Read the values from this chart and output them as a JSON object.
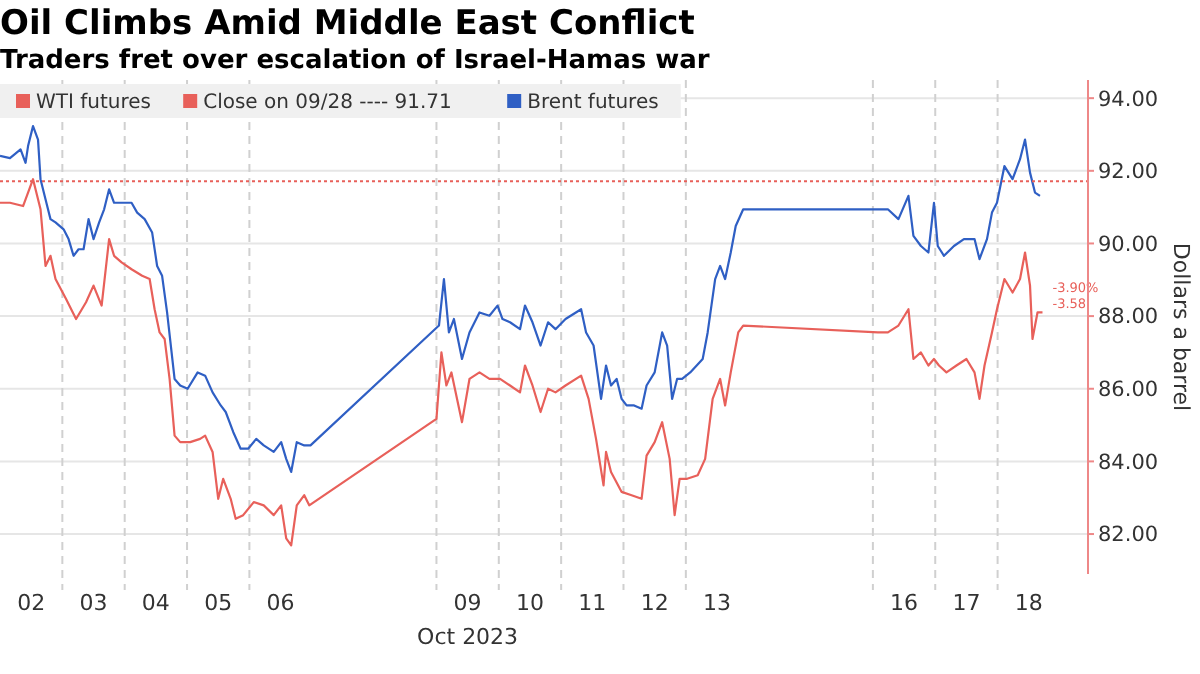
{
  "chart_data": {
    "type": "line",
    "title": "Oil Climbs Amid Middle East Conflict",
    "subtitle": "Traders fret over escalation of Israel-Hamas war",
    "xlabel": "Oct 2023",
    "ylabel": "Dollars a barrel",
    "xlim": [
      "2023-10-02T00:00",
      "2023-10-19T10:48"
    ],
    "xticks": [
      {
        "value": "2023-10-02T12:00",
        "label": "02"
      },
      {
        "value": "2023-10-03T12:00",
        "label": "03"
      },
      {
        "value": "2023-10-04T12:00",
        "label": "04"
      },
      {
        "value": "2023-10-05T12:00",
        "label": "05"
      },
      {
        "value": "2023-10-06T12:00",
        "label": "06"
      },
      {
        "value": "2023-10-09T12:00",
        "label": "09"
      },
      {
        "value": "2023-10-10T12:00",
        "label": "10"
      },
      {
        "value": "2023-10-11T12:00",
        "label": "11"
      },
      {
        "value": "2023-10-12T12:00",
        "label": "12"
      },
      {
        "value": "2023-10-13T12:00",
        "label": "13"
      },
      {
        "value": "2023-10-16T12:00",
        "label": "16"
      },
      {
        "value": "2023-10-17T12:00",
        "label": "17"
      },
      {
        "value": "2023-10-18T12:00",
        "label": "18"
      }
    ],
    "ylim": [
      80.9,
      94.5
    ],
    "yticks": [
      {
        "value": 82,
        "label": "82.00"
      },
      {
        "value": 84,
        "label": "84.00"
      },
      {
        "value": 86,
        "label": "86.00"
      },
      {
        "value": 88,
        "label": "88.00"
      },
      {
        "value": 90,
        "label": "90.00"
      },
      {
        "value": 92,
        "label": "92.00"
      },
      {
        "value": 94,
        "label": "94.00"
      }
    ],
    "grid": "y",
    "legend": "top left",
    "line_style": "solid",
    "marker": "none",
    "series": [
      {
        "name": "WTI futures",
        "color": "#e8605a",
        "x": [
          "2023-10-02T00:00",
          "2023-10-02T03:50",
          "2023-10-02T08:53",
          "2023-10-02T10:48",
          "2023-10-02T12:43",
          "2023-10-02T15:36",
          "2023-10-02T17:31",
          "2023-10-02T19:26",
          "2023-10-02T21:22",
          "2023-10-03T01:26",
          "2023-10-03T05:17",
          "2023-10-03T09:07",
          "2023-10-03T12:00",
          "2023-10-03T15:07",
          "2023-10-03T18:00",
          "2023-10-03T19:55",
          "2023-10-03T22:48",
          "2023-10-04T02:38",
          "2023-10-04T06:43",
          "2023-10-04T09:36",
          "2023-10-04T11:31",
          "2023-10-04T13:26",
          "2023-10-04T15:22",
          "2023-10-04T17:17",
          "2023-10-04T19:12",
          "2023-10-04T21:22",
          "2023-10-05T01:12",
          "2023-10-05T05:02",
          "2023-10-05T06:58",
          "2023-10-05T09:50",
          "2023-10-05T12:00",
          "2023-10-05T13:55",
          "2023-10-05T16:48",
          "2023-10-05T18:43",
          "2023-10-05T21:36",
          "2023-10-06T01:41",
          "2023-10-06T05:31",
          "2023-10-06T09:22",
          "2023-10-06T12:14",
          "2023-10-06T14:10",
          "2023-10-06T16:05",
          "2023-10-06T18:14",
          "2023-10-06T21:07",
          "2023-10-06T23:02",
          "2023-10-09T00:00",
          "2023-10-09T01:55",
          "2023-10-09T03:50",
          "2023-10-09T05:46",
          "2023-10-09T09:50",
          "2023-10-09T12:43",
          "2023-10-09T16:34",
          "2023-10-09T20:24",
          "2023-10-10T00:29",
          "2023-10-10T04:19",
          "2023-10-10T08:10",
          "2023-10-10T10:05",
          "2023-10-10T12:58",
          "2023-10-10T16:05",
          "2023-10-10T18:58",
          "2023-10-10T21:50",
          "2023-10-11T01:41",
          "2023-10-11T07:41",
          "2023-10-11T10:34",
          "2023-10-11T13:26",
          "2023-10-11T16:19",
          "2023-10-11T17:17",
          "2023-10-11T19:12",
          "2023-10-11T23:17",
          "2023-10-12T03:07",
          "2023-10-12T06:58",
          "2023-10-12T08:53",
          "2023-10-12T12:00",
          "2023-10-12T14:53",
          "2023-10-12T17:46",
          "2023-10-12T19:41",
          "2023-10-12T21:36",
          "2023-10-13T00:29",
          "2023-10-13T04:34",
          "2023-10-13T07:26",
          "2023-10-13T10:19",
          "2023-10-13T13:12",
          "2023-10-13T15:07",
          "2023-10-13T17:17",
          "2023-10-13T20:10",
          "2023-10-13T22:05",
          "2023-10-16T01:55",
          "2023-10-16T05:46",
          "2023-10-16T09:50",
          "2023-10-16T13:41",
          "2023-10-16T15:36",
          "2023-10-16T18:29",
          "2023-10-16T21:22",
          "2023-10-16T23:31",
          "2023-10-17T01:26",
          "2023-10-17T04:19",
          "2023-10-17T08:10",
          "2023-10-17T12:00",
          "2023-10-17T15:07",
          "2023-10-17T17:02",
          "2023-10-17T18:58",
          "2023-10-17T21:50",
          "2023-10-17T23:46",
          "2023-10-18T02:38",
          "2023-10-18T05:46",
          "2023-10-18T08:38",
          "2023-10-18T10:34",
          "2023-10-18T12:29",
          "2023-10-18T13:26",
          "2023-10-18T15:22",
          "2023-10-18T17:17"
        ],
        "values": [
          91.12,
          91.12,
          91.03,
          91.4,
          91.77,
          90.94,
          89.38,
          89.66,
          89.02,
          88.47,
          87.92,
          88.38,
          88.84,
          88.29,
          90.12,
          89.66,
          89.48,
          89.29,
          89.11,
          89.02,
          88.19,
          87.55,
          87.37,
          86.27,
          84.71,
          84.53,
          84.53,
          84.62,
          84.71,
          84.26,
          82.97,
          83.52,
          82.97,
          82.42,
          82.52,
          82.88,
          82.79,
          82.52,
          82.79,
          81.88,
          81.69,
          82.79,
          83.07,
          82.79,
          85.17,
          87,
          86.09,
          86.45,
          85.08,
          86.27,
          86.45,
          86.27,
          86.27,
          86.09,
          85.9,
          86.64,
          86.09,
          85.36,
          86,
          85.9,
          86.09,
          86.36,
          85.72,
          84.62,
          83.34,
          84.26,
          83.71,
          83.16,
          83.07,
          82.97,
          84.16,
          84.53,
          85.08,
          84.07,
          82.52,
          83.52,
          83.52,
          83.62,
          84.07,
          85.72,
          86.27,
          85.54,
          86.45,
          87.55,
          87.74,
          87.55,
          87.55,
          87.74,
          88.19,
          86.82,
          87,
          86.64,
          86.82,
          86.64,
          86.45,
          86.64,
          86.82,
          86.45,
          85.72,
          86.64,
          87.55,
          88.19,
          89.02,
          88.65,
          89.02,
          89.75,
          88.84,
          87.37,
          88.1,
          88.1
        ]
      },
      {
        "name": "Brent futures",
        "color": "#2f5fc4",
        "x": [
          "2023-10-02T00:00",
          "2023-10-02T03:50",
          "2023-10-02T07:55",
          "2023-10-02T09:50",
          "2023-10-02T10:48",
          "2023-10-02T12:43",
          "2023-10-02T14:38",
          "2023-10-02T15:36",
          "2023-10-02T17:31",
          "2023-10-02T19:26",
          "2023-10-02T21:22",
          "2023-10-03T00:29",
          "2023-10-03T02:24",
          "2023-10-03T04:19",
          "2023-10-03T06:14",
          "2023-10-03T08:10",
          "2023-10-03T10:05",
          "2023-10-03T12:00",
          "2023-10-03T14:10",
          "2023-10-03T16:05",
          "2023-10-03T18:00",
          "2023-10-03T19:55",
          "2023-10-03T22:48",
          "2023-10-04T02:38",
          "2023-10-04T04:48",
          "2023-10-04T07:41",
          "2023-10-04T10:34",
          "2023-10-04T12:29",
          "2023-10-04T14:24",
          "2023-10-04T16:19",
          "2023-10-04T19:12",
          "2023-10-04T21:22",
          "2023-10-05T00:14",
          "2023-10-05T04:05",
          "2023-10-05T06:58",
          "2023-10-05T09:50",
          "2023-10-05T12:58",
          "2023-10-05T14:53",
          "2023-10-05T17:46",
          "2023-10-05T20:38",
          "2023-10-05T23:31",
          "2023-10-06T02:38",
          "2023-10-06T05:31",
          "2023-10-06T09:22",
          "2023-10-06T12:14",
          "2023-10-06T14:10",
          "2023-10-06T16:05",
          "2023-10-06T18:14",
          "2023-10-06T21:07",
          "2023-10-06T23:31",
          "2023-10-09T00:58",
          "2023-10-09T02:53",
          "2023-10-09T04:48",
          "2023-10-09T06:43",
          "2023-10-09T09:50",
          "2023-10-09T12:43",
          "2023-10-09T16:34",
          "2023-10-09T20:24",
          "2023-10-09T23:31",
          "2023-10-10T01:26",
          "2023-10-10T04:19",
          "2023-10-10T08:10",
          "2023-10-10T10:05",
          "2023-10-10T12:58",
          "2023-10-10T16:05",
          "2023-10-10T18:58",
          "2023-10-10T21:50",
          "2023-10-11T01:41",
          "2023-10-11T07:41",
          "2023-10-11T09:36",
          "2023-10-11T12:29",
          "2023-10-11T15:22",
          "2023-10-11T17:17",
          "2023-10-11T19:12",
          "2023-10-11T21:22",
          "2023-10-11T23:17",
          "2023-10-12T01:12",
          "2023-10-12T04:05",
          "2023-10-12T06:58",
          "2023-10-12T08:53",
          "2023-10-12T12:00",
          "2023-10-12T14:53",
          "2023-10-12T16:48",
          "2023-10-12T18:43",
          "2023-10-12T20:38",
          "2023-10-12T22:34",
          "2023-10-13T01:41",
          "2023-10-13T06:29",
          "2023-10-13T08:24",
          "2023-10-13T11:17",
          "2023-10-13T13:12",
          "2023-10-13T15:07",
          "2023-10-13T17:17",
          "2023-10-13T19:12",
          "2023-10-13T22:05",
          "2023-10-16T01:55",
          "2023-10-16T05:46",
          "2023-10-16T09:50",
          "2023-10-16T13:41",
          "2023-10-16T15:36",
          "2023-10-16T18:29",
          "2023-10-16T21:22",
          "2023-10-16T23:31",
          "2023-10-17T00:58",
          "2023-10-17T03:22",
          "2023-10-17T07:12",
          "2023-10-17T11:02",
          "2023-10-17T15:07",
          "2023-10-17T17:02",
          "2023-10-17T19:55",
          "2023-10-17T21:50",
          "2023-10-17T23:46",
          "2023-10-18T02:38",
          "2023-10-18T05:46",
          "2023-10-18T08:38",
          "2023-10-18T10:34",
          "2023-10-18T12:29",
          "2023-10-18T14:24",
          "2023-10-18T16:19"
        ],
        "values": [
          92.41,
          92.35,
          92.59,
          92.22,
          92.68,
          93.23,
          92.86,
          91.77,
          91.22,
          90.67,
          90.58,
          90.39,
          90.12,
          89.66,
          89.84,
          89.84,
          90.67,
          90.12,
          90.58,
          90.94,
          91.49,
          91.12,
          91.12,
          91.12,
          90.85,
          90.67,
          90.3,
          89.38,
          89.11,
          88.1,
          86.27,
          86.09,
          86,
          86.45,
          86.36,
          85.9,
          85.54,
          85.36,
          84.81,
          84.35,
          84.35,
          84.62,
          84.44,
          84.26,
          84.53,
          84.07,
          83.71,
          84.53,
          84.44,
          84.44,
          87.74,
          89.02,
          87.55,
          87.92,
          86.82,
          87.55,
          88.1,
          88.01,
          88.29,
          87.92,
          87.83,
          87.64,
          88.29,
          87.83,
          87.19,
          87.83,
          87.64,
          87.92,
          88.19,
          87.55,
          87.19,
          85.72,
          86.64,
          86.09,
          86.27,
          85.72,
          85.54,
          85.54,
          85.45,
          86.09,
          86.45,
          87.55,
          87.19,
          85.72,
          86.27,
          86.27,
          86.45,
          86.82,
          87.55,
          89.02,
          89.38,
          89.02,
          89.75,
          90.48,
          90.94,
          90.94,
          90.94,
          90.67,
          91.31,
          90.21,
          89.93,
          89.75,
          91.12,
          89.93,
          89.66,
          89.93,
          90.12,
          90.12,
          89.57,
          90.12,
          90.85,
          91.12,
          92.13,
          91.77,
          92.32,
          92.86,
          91.95,
          91.4,
          91.31
        ]
      }
    ],
    "ref_lines": [
      {
        "axis": "y",
        "value": 91.71,
        "label": "Close on 09/28 ---- 91.71",
        "color": "#e8605a",
        "line_style": "dotted"
      },
      {
        "axis": "x",
        "value": "2023-10-03",
        "color": "#d0d0d0",
        "line_style": "dashed"
      },
      {
        "axis": "x",
        "value": "2023-10-04",
        "color": "#d0d0d0",
        "line_style": "dashed"
      },
      {
        "axis": "x",
        "value": "2023-10-05",
        "color": "#d0d0d0",
        "line_style": "dashed"
      },
      {
        "axis": "x",
        "value": "2023-10-06",
        "color": "#d0d0d0",
        "line_style": "dashed"
      },
      {
        "axis": "x",
        "value": "2023-10-09",
        "color": "#d0d0d0",
        "line_style": "dashed"
      },
      {
        "axis": "x",
        "value": "2023-10-10",
        "color": "#d0d0d0",
        "line_style": "dashed"
      },
      {
        "axis": "x",
        "value": "2023-10-11",
        "color": "#d0d0d0",
        "line_style": "dashed"
      },
      {
        "axis": "x",
        "value": "2023-10-12",
        "color": "#d0d0d0",
        "line_style": "dashed"
      },
      {
        "axis": "x",
        "value": "2023-10-13",
        "color": "#d0d0d0",
        "line_style": "dashed"
      },
      {
        "axis": "x",
        "value": "2023-10-16",
        "color": "#d0d0d0",
        "line_style": "dashed"
      },
      {
        "axis": "x",
        "value": "2023-10-17",
        "color": "#d0d0d0",
        "line_style": "dashed"
      },
      {
        "axis": "x",
        "value": "2023-10-18",
        "color": "#d0d0d0",
        "line_style": "dashed"
      }
    ],
    "annotations": [
      "-3.90%",
      "-3.58"
    ]
  }
}
